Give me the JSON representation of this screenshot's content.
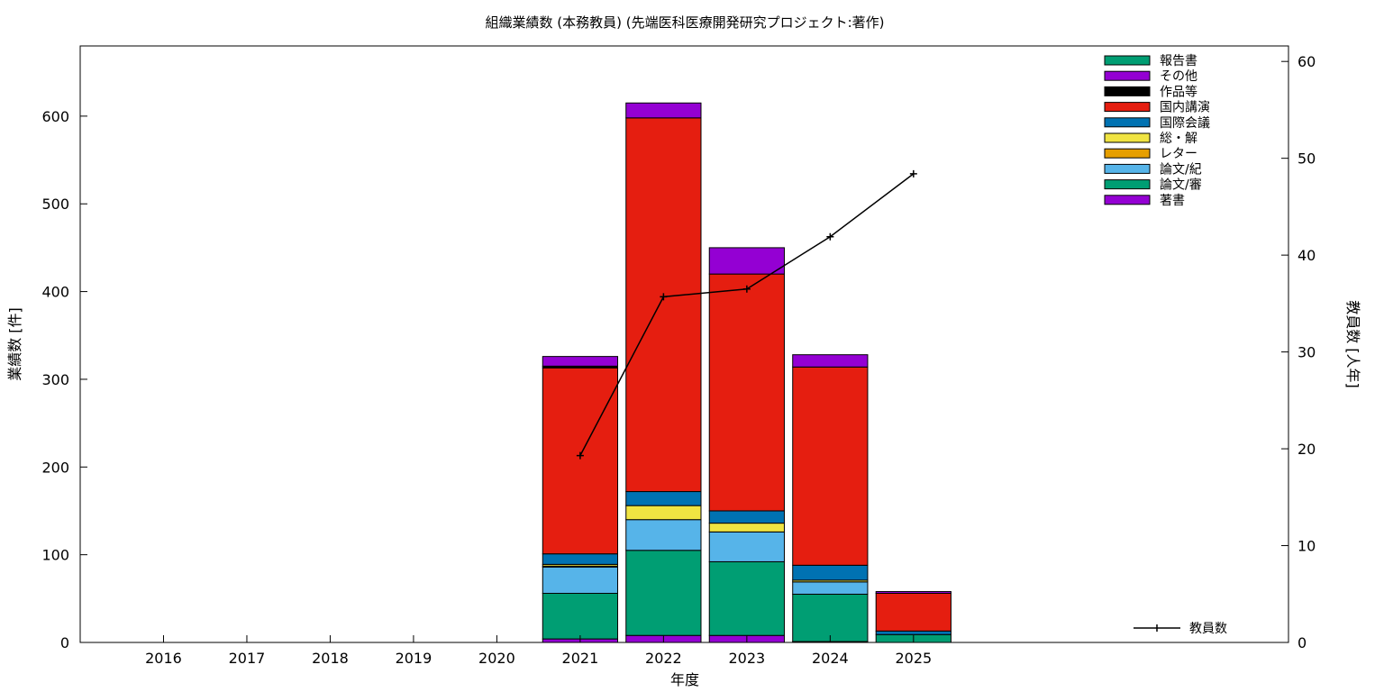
{
  "chart_data": {
    "type": "bar",
    "title": "組織業績数 (本務教員) (先端医科医療開発研究プロジェクト:著作)",
    "xlabel": "年度",
    "ylabel": "業績数 [件]",
    "y2label": "教員数 [人年]",
    "categories": [
      "2016",
      "2017",
      "2018",
      "2019",
      "2020",
      "2021",
      "2022",
      "2023",
      "2024",
      "2025"
    ],
    "ylim": [
      0,
      680
    ],
    "y2lim": [
      0,
      61.6
    ],
    "yticks": [
      0,
      100,
      200,
      300,
      400,
      500,
      600
    ],
    "y2ticks": [
      0,
      10,
      20,
      30,
      40,
      50,
      60
    ],
    "stacked": true,
    "series": [
      {
        "name": "著書",
        "color": "#9400d3",
        "values": [
          0,
          0,
          0,
          0,
          0,
          4,
          8,
          8,
          1,
          0
        ]
      },
      {
        "name": "論文/審",
        "color": "#009e73",
        "values": [
          0,
          0,
          0,
          0,
          0,
          52,
          97,
          84,
          54,
          9
        ]
      },
      {
        "name": "論文/紀",
        "color": "#56b4e9",
        "values": [
          0,
          0,
          0,
          0,
          0,
          30,
          35,
          34,
          14,
          0
        ]
      },
      {
        "name": "レター",
        "color": "#e69f00",
        "values": [
          0,
          0,
          0,
          0,
          0,
          1,
          0,
          0,
          0,
          0
        ]
      },
      {
        "name": "総・解",
        "color": "#f0e442",
        "values": [
          0,
          0,
          0,
          0,
          0,
          2,
          16,
          10,
          2,
          0
        ]
      },
      {
        "name": "国際会議",
        "color": "#0072b2",
        "values": [
          0,
          0,
          0,
          0,
          0,
          12,
          16,
          14,
          17,
          4
        ]
      },
      {
        "name": "国内講演",
        "color": "#e51e10",
        "values": [
          0,
          0,
          0,
          0,
          0,
          212,
          426,
          270,
          226,
          43
        ]
      },
      {
        "name": "作品等",
        "color": "#000000",
        "values": [
          0,
          0,
          0,
          0,
          0,
          2,
          0,
          0,
          0,
          0
        ]
      },
      {
        "name": "その他",
        "color": "#9400d3",
        "values": [
          0,
          0,
          0,
          0,
          0,
          11,
          17,
          30,
          14,
          2
        ]
      },
      {
        "name": "報告書",
        "color": "#009e73",
        "values": [
          0,
          0,
          0,
          0,
          0,
          0,
          0,
          0,
          0,
          0
        ]
      }
    ],
    "line_series": {
      "name": "教員数",
      "color": "#000000",
      "axis": "y2",
      "x": [
        "2021",
        "2022",
        "2023",
        "2024",
        "2025"
      ],
      "values": [
        19.3,
        35.7,
        36.5,
        41.9,
        48.4
      ]
    },
    "legend": "top-right",
    "grid": false
  }
}
